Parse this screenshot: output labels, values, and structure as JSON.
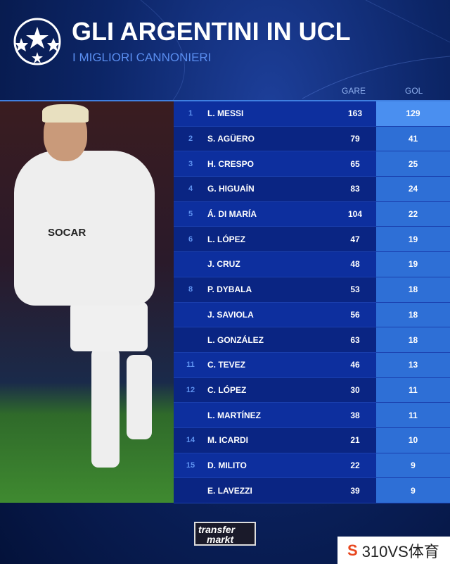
{
  "header": {
    "title": "GLI ARGENTINI IN UCL",
    "subtitle": "I MIGLIORI CANNONIERI",
    "logo_icon": "champions-league-starball-icon"
  },
  "columns": {
    "gare": "GARE",
    "gol": "GOL"
  },
  "photo": {
    "sponsor": "SOCAR"
  },
  "rows": [
    {
      "rank": "1",
      "name": "L. MESSI",
      "gare": "163",
      "gol": "129"
    },
    {
      "rank": "2",
      "name": "S. AGÜERO",
      "gare": "79",
      "gol": "41"
    },
    {
      "rank": "3",
      "name": "H. CRESPO",
      "gare": "65",
      "gol": "25"
    },
    {
      "rank": "4",
      "name": "G. HIGUAÍN",
      "gare": "83",
      "gol": "24"
    },
    {
      "rank": "5",
      "name": "Á. DI MARÍA",
      "gare": "104",
      "gol": "22"
    },
    {
      "rank": "6",
      "name": "L. LÓPEZ",
      "gare": "47",
      "gol": "19"
    },
    {
      "rank": "",
      "name": "J. CRUZ",
      "gare": "48",
      "gol": "19"
    },
    {
      "rank": "8",
      "name": "P. DYBALA",
      "gare": "53",
      "gol": "18"
    },
    {
      "rank": "",
      "name": "J. SAVIOLA",
      "gare": "56",
      "gol": "18"
    },
    {
      "rank": "",
      "name": "L. GONZÁLEZ",
      "gare": "63",
      "gol": "18"
    },
    {
      "rank": "11",
      "name": "C. TEVEZ",
      "gare": "46",
      "gol": "13"
    },
    {
      "rank": "12",
      "name": "C. LÓPEZ",
      "gare": "30",
      "gol": "11"
    },
    {
      "rank": "",
      "name": "L. MARTÍNEZ",
      "gare": "38",
      "gol": "11"
    },
    {
      "rank": "14",
      "name": "M. ICARDI",
      "gare": "21",
      "gol": "10"
    },
    {
      "rank": "15",
      "name": "D. MILITO",
      "gare": "22",
      "gol": "9"
    },
    {
      "rank": "",
      "name": "E. LAVEZZI",
      "gare": "39",
      "gol": "9"
    }
  ],
  "footer": {
    "source_line1": "transfer",
    "source_line2": "markt",
    "watermark": "310VS体育"
  }
}
